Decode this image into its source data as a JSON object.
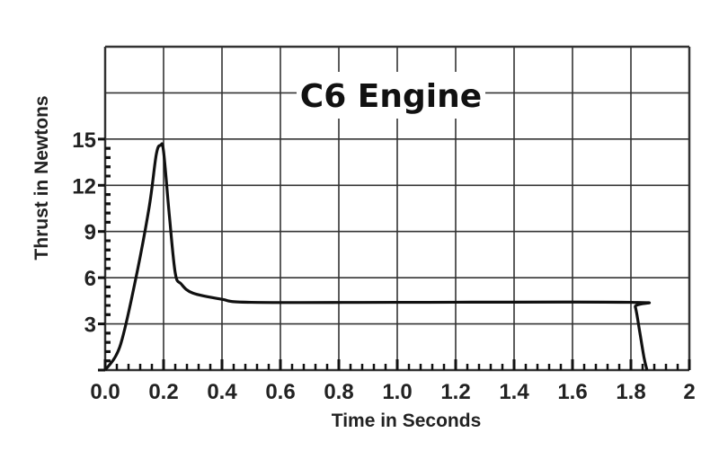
{
  "chart_data": {
    "type": "line",
    "title": "C6 Engine",
    "xlabel": "Time in Seconds",
    "ylabel": "Thrust in Newtons",
    "xlim": [
      0,
      2
    ],
    "ylim": [
      0,
      21
    ],
    "grid": true,
    "x_ticks": [
      "0.0",
      "0.2",
      "0.4",
      "0.6",
      "0.8",
      "1.0",
      "1.2",
      "1.4",
      "1.6",
      "1.8",
      "2"
    ],
    "y_ticks": [
      "3",
      "6",
      "9",
      "12",
      "15"
    ],
    "series": [
      {
        "color": "#111111",
        "points": [
          [
            0,
            0
          ],
          [
            0.05,
            1.5
          ],
          [
            0.1,
            5.5
          ],
          [
            0.15,
            10.5
          ],
          [
            0.175,
            14
          ],
          [
            0.19,
            14.6
          ],
          [
            0.2,
            14.2
          ],
          [
            0.22,
            10
          ],
          [
            0.24,
            6.3
          ],
          [
            0.26,
            5.6
          ],
          [
            0.3,
            5.0
          ],
          [
            0.4,
            4.6
          ],
          [
            0.5,
            4.4
          ],
          [
            1.0,
            4.4
          ],
          [
            1.8,
            4.4
          ],
          [
            1.815,
            4.1
          ],
          [
            1.83,
            2.5
          ],
          [
            1.845,
            0.8
          ],
          [
            1.855,
            0
          ]
        ]
      }
    ]
  }
}
